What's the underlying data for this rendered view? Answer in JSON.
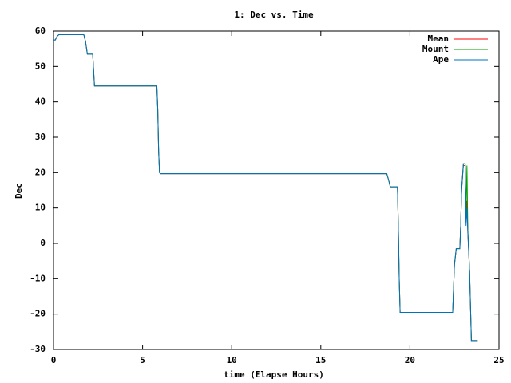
{
  "chart_data": {
    "type": "line",
    "title": "1: Dec vs. Time",
    "x_label": "time (Elapse Hours)",
    "y_label": "Dec",
    "x": [
      0,
      0.1,
      0.2,
      0.3,
      1.7,
      1.8,
      1.9,
      2.2,
      2.3,
      5.8,
      5.85,
      5.9,
      5.95,
      6,
      18.7,
      18.8,
      18.9,
      19.3,
      19.35,
      19.4,
      19.45,
      22.4,
      22.5,
      22.6,
      22.8,
      22.85,
      22.9,
      23,
      23.1,
      23.15,
      23.2,
      23.25,
      23.35,
      23.45,
      23.8
    ],
    "series": [
      {
        "name": "Mean",
        "color": "#ff0000",
        "values": [
          57.5,
          57.5,
          58.5,
          59,
          59,
          57,
          53.5,
          53.5,
          44.5,
          44.5,
          38,
          26,
          20,
          19.7,
          19.7,
          18,
          16,
          16,
          5,
          -10,
          -19.5,
          -19.5,
          -6,
          -1.5,
          -1.5,
          5,
          15,
          22.5,
          22.5,
          6,
          12,
          3,
          -8,
          -27.5,
          -27.5
        ]
      },
      {
        "name": "Mount",
        "color": "#00a000",
        "values": [
          57.5,
          57.5,
          58.5,
          59,
          59,
          57,
          53.5,
          53.5,
          44.5,
          44.5,
          38,
          26,
          20,
          19.7,
          19.7,
          18,
          16,
          16,
          5,
          -10,
          -19.5,
          -19.5,
          -6,
          -1.5,
          -1.5,
          5,
          15,
          22,
          22,
          8,
          22,
          4,
          -8,
          -27.5,
          -27.5
        ]
      },
      {
        "name": "Ape",
        "color": "#0070c0",
        "values": [
          57.5,
          57.5,
          58.5,
          59,
          59,
          57,
          53.5,
          53.5,
          44.5,
          44.5,
          38,
          26,
          20,
          19.7,
          19.7,
          18,
          16,
          16,
          5,
          -10,
          -19.5,
          -19.5,
          -6,
          -1.5,
          -1.5,
          5,
          15,
          22.5,
          22.5,
          5,
          10,
          3,
          -8,
          -27.5,
          -27.5
        ]
      }
    ],
    "xlim": [
      0,
      25
    ],
    "xticks": [
      0,
      5,
      10,
      15,
      20,
      25
    ],
    "ylim": [
      -30,
      60
    ],
    "yticks": [
      -30,
      -20,
      -10,
      0,
      10,
      20,
      30,
      40,
      50,
      60
    ],
    "grid": false,
    "legend": "top-right"
  }
}
